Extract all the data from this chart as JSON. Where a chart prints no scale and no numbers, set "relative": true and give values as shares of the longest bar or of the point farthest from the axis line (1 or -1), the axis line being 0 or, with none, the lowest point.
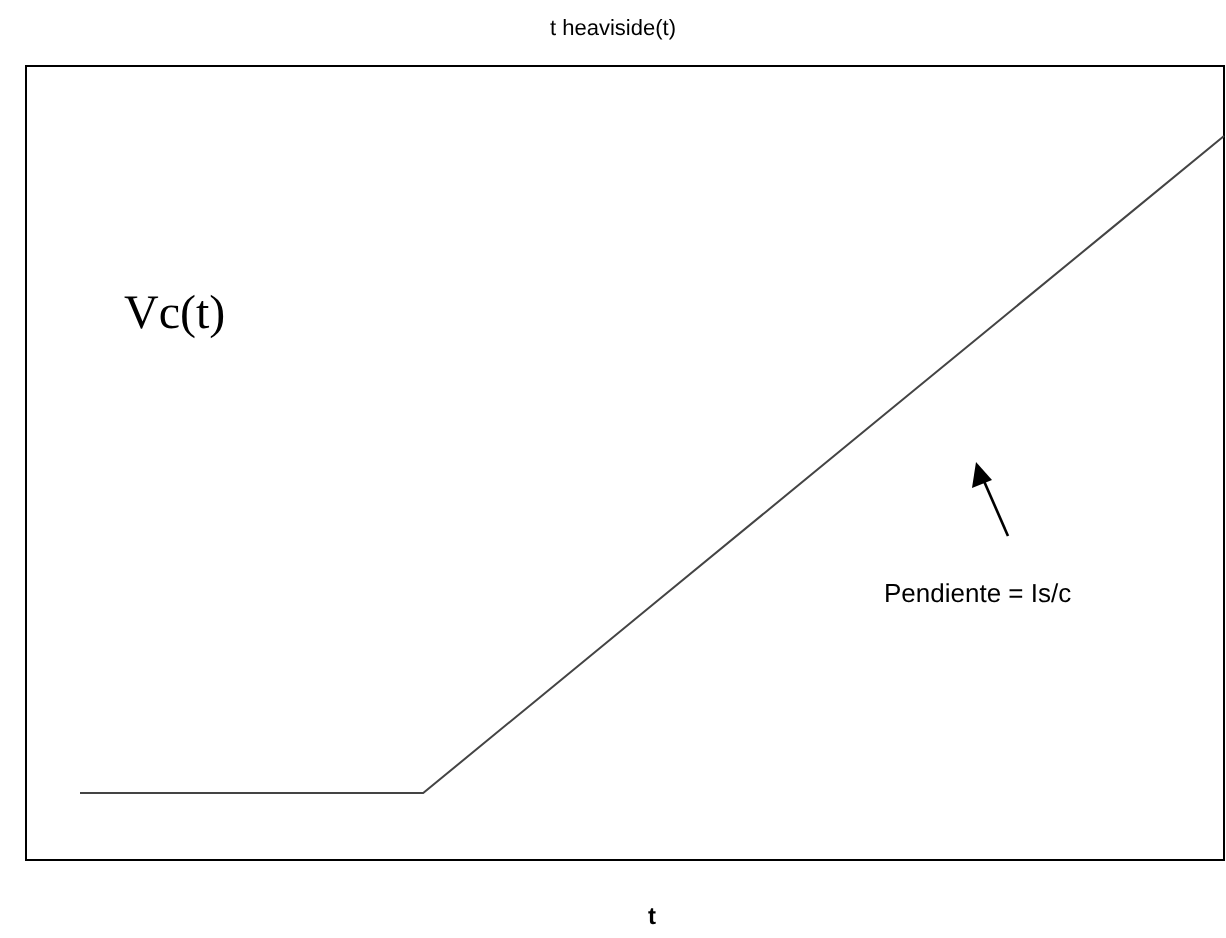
{
  "chart_data": {
    "type": "line",
    "title": "t heaviside(t)",
    "xlabel": "t",
    "relative": true,
    "categories": [
      null,
      null,
      null,
      null,
      null,
      null,
      null,
      null,
      null,
      null,
      null
    ],
    "series": [
      {
        "color": "#444444",
        "values": [
          0.09,
          0.09,
          0.09,
          0.09,
          0.22,
          0.35,
          0.48,
          0.61,
          0.74,
          0.87,
          1
        ]
      }
    ],
    "annotations": [
      "Vc(t)",
      "Pendiente = Is/c"
    ],
    "marker": "none",
    "grid": false
  }
}
